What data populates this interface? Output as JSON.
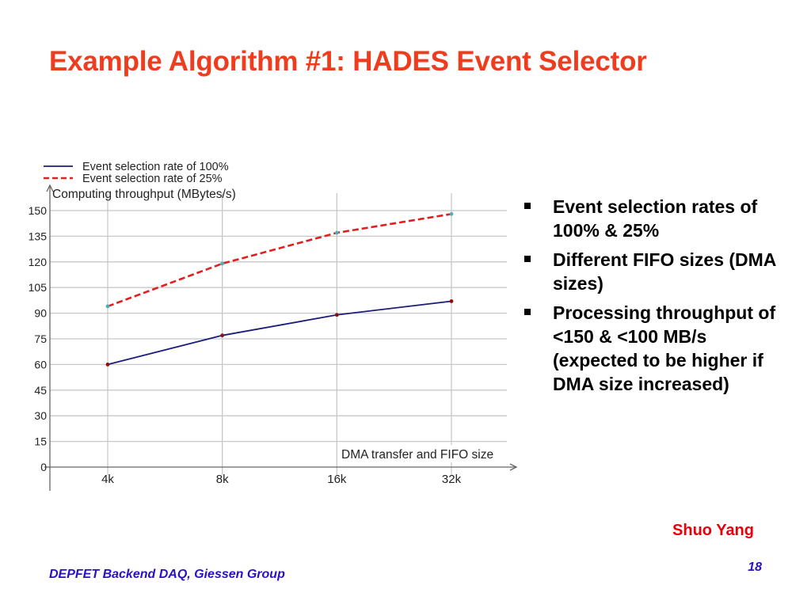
{
  "slide": {
    "title": "Example Algorithm #1: HADES Event Selector",
    "author": "Shuo Yang",
    "footer": "DEPFET Backend DAQ, Giessen Group",
    "page_number": "18",
    "colors": {
      "title": "#f03c1e",
      "author": "#e8000b",
      "footer": "#2a10c8"
    }
  },
  "bullets": [
    {
      "text": "Event selection rates of 100% & 25%"
    },
    {
      "text": "Different FIFO sizes (DMA sizes)"
    },
    {
      "text": "Processing throughput of\n<150 & <100 MB/s (expected to be higher if DMA size increased)"
    }
  ],
  "chart_data": {
    "type": "line",
    "title": "",
    "ylabel": "Computing throughput (MBytes/s)",
    "xlabel": "DMA transfer and FIFO size",
    "categories": [
      "4k",
      "8k",
      "16k",
      "32k"
    ],
    "yticks": [
      0,
      15,
      30,
      45,
      60,
      75,
      90,
      105,
      120,
      135,
      150
    ],
    "ylim": [
      0,
      150
    ],
    "grid": true,
    "legend_position": "top-left",
    "series": [
      {
        "name": "Event selection rate of 100%",
        "values": [
          60,
          77,
          89,
          97
        ],
        "color": "#1c1c7a",
        "style": "solid"
      },
      {
        "name": "Event selection rate of 25%",
        "values": [
          94,
          119,
          137,
          148
        ],
        "color": "#e02020",
        "style": "dashed"
      }
    ]
  }
}
